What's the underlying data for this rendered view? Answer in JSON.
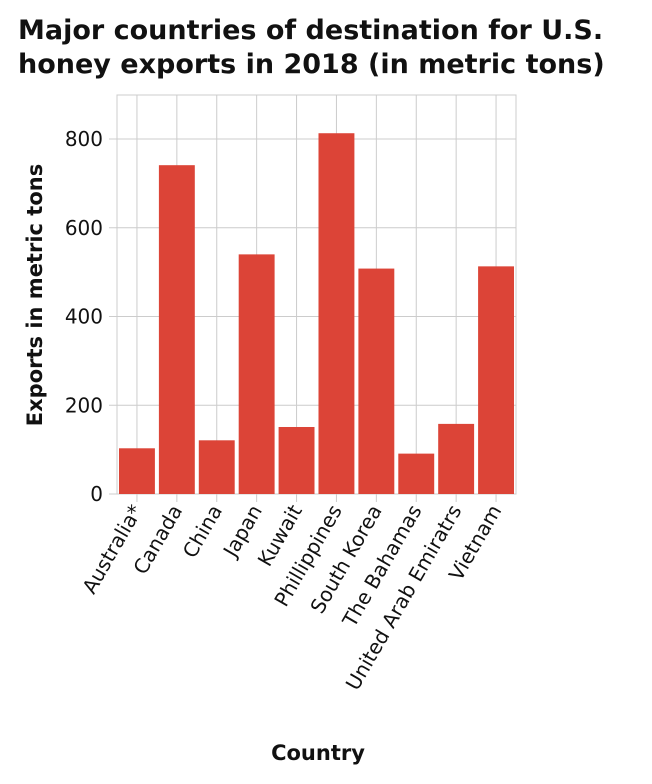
{
  "chart_data": {
    "type": "bar",
    "title": "Major countries of destination for U.S.\nhoney exports in 2018 (in metric tons)",
    "xlabel": "Country",
    "ylabel": "Exports in metric tons",
    "categories": [
      "Australia*",
      "Canada",
      "China",
      "Japan",
      "Kuwait",
      "Phillippines",
      "South Korea",
      "The Bahamas",
      "United Arab Emiratrs",
      "Vietnam"
    ],
    "values": [
      103,
      741,
      121,
      540,
      151,
      813,
      508,
      91,
      158,
      513
    ],
    "ylim": [
      0,
      800
    ],
    "yticks": [
      0,
      200,
      400,
      600,
      800
    ],
    "bar_color": "#dc4437",
    "grid": true
  }
}
